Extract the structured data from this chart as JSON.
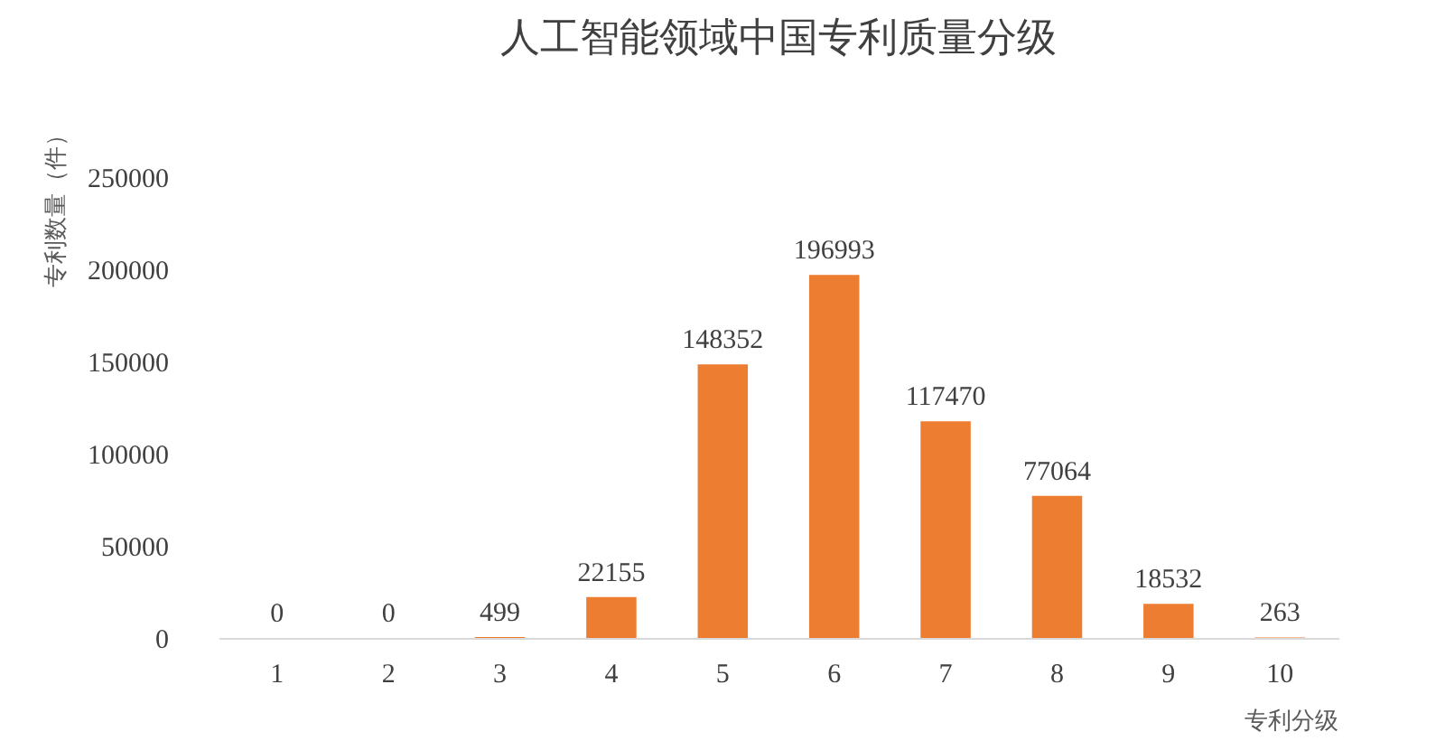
{
  "chart_data": {
    "type": "bar",
    "title": "人工智能领域中国专利质量分级",
    "xlabel": "专利分级",
    "ylabel": "专利数量（件）",
    "categories": [
      "1",
      "2",
      "3",
      "4",
      "5",
      "6",
      "7",
      "8",
      "9",
      "10"
    ],
    "values": [
      0,
      0,
      499,
      22155,
      148352,
      196993,
      117470,
      77064,
      18532,
      263
    ],
    "color": "#ed7d31",
    "ylim": [
      0,
      250000
    ],
    "yticks": [
      0,
      50000,
      100000,
      150000,
      200000,
      250000
    ],
    "grid": false,
    "data_labels": true
  }
}
